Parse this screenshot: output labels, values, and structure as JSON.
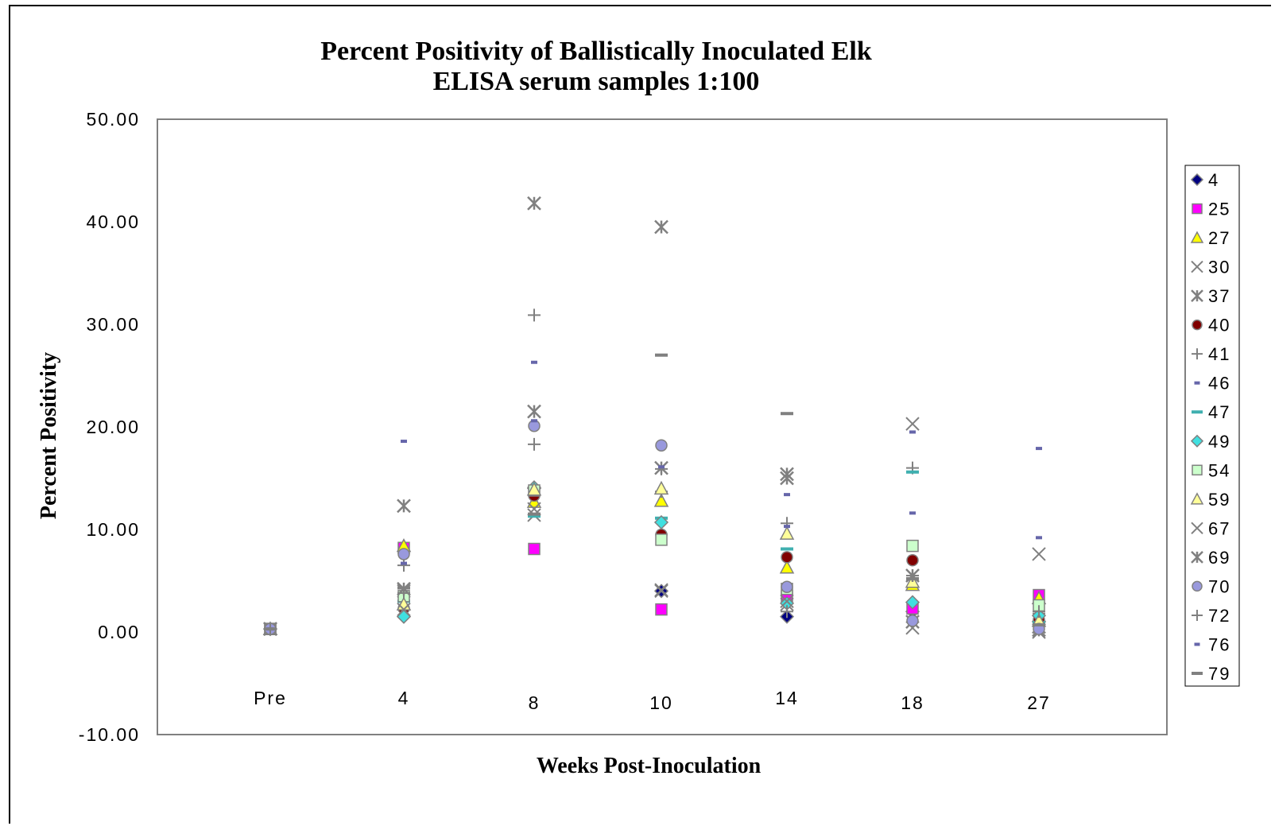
{
  "chart_data": {
    "type": "scatter",
    "title": "Percent Positivity of Ballistically Inoculated Elk",
    "subtitle": "ELISA serum samples 1:100",
    "xlabel": "Weeks Post-Inoculation",
    "ylabel": "Percent Positivity",
    "categories": [
      "Pre",
      "4",
      "8",
      "10",
      "14",
      "18",
      "27"
    ],
    "ylim": [
      -10,
      50
    ],
    "yticks": [
      "50.00",
      "40.00",
      "30.00",
      "20.00",
      "10.00",
      "0.00",
      "-10.00"
    ],
    "grid": false,
    "legend_position": "right",
    "series": [
      {
        "name": "4",
        "marker": "diamond",
        "color": "#000080",
        "values": [
          0.3,
          1.5,
          14.0,
          4.0,
          1.5,
          2.0,
          1.0
        ]
      },
      {
        "name": "25",
        "marker": "square",
        "color": "#ff00ff",
        "values": [
          0.3,
          8.2,
          8.1,
          2.2,
          3.5,
          2.3,
          3.6
        ]
      },
      {
        "name": "27",
        "marker": "triangle",
        "color": "#ffff00",
        "values": [
          0.3,
          8.4,
          12.7,
          12.8,
          6.3,
          4.6,
          3.3
        ]
      },
      {
        "name": "30",
        "marker": "x",
        "color": "#808080",
        "values": [
          0.3,
          4.0,
          11.4,
          4.0,
          2.7,
          0.4,
          0.0
        ]
      },
      {
        "name": "37",
        "marker": "star",
        "color": "#808080",
        "values": [
          0.3,
          12.3,
          41.8,
          39.5,
          15.4,
          1.0,
          0.5
        ]
      },
      {
        "name": "40",
        "marker": "circle",
        "color": "#800000",
        "values": [
          0.3,
          2.3,
          13.3,
          9.5,
          7.3,
          7.0,
          1.2
        ]
      },
      {
        "name": "41",
        "marker": "plus",
        "color": "#808080",
        "values": [
          0.3,
          6.5,
          30.9,
          13.7,
          10.6,
          16.0,
          1.8
        ]
      },
      {
        "name": "46",
        "marker": "dash",
        "color": "#6666aa",
        "values": [
          0.3,
          18.6,
          26.3,
          9.2,
          13.4,
          19.5,
          17.9
        ]
      },
      {
        "name": "47",
        "marker": "hline",
        "color": "#40b0b0",
        "values": [
          0.3,
          3.0,
          11.3,
          11.1,
          8.1,
          15.6,
          0.9
        ]
      },
      {
        "name": "49",
        "marker": "diamond",
        "color": "#40e0e0",
        "values": [
          0.3,
          1.5,
          14.1,
          10.7,
          2.8,
          2.9,
          1.6
        ]
      },
      {
        "name": "54",
        "marker": "square",
        "color": "#ccffcc",
        "values": [
          0.3,
          3.5,
          13.8,
          9.0,
          4.2,
          8.4,
          2.6
        ]
      },
      {
        "name": "59",
        "marker": "triangle",
        "color": "#ffff99",
        "values": [
          0.3,
          2.7,
          13.9,
          14.0,
          9.6,
          4.9,
          1.1
        ]
      },
      {
        "name": "67",
        "marker": "x",
        "color": "#808080",
        "values": [
          0.3,
          2.2,
          12.0,
          4.1,
          3.0,
          20.3,
          7.6
        ]
      },
      {
        "name": "69",
        "marker": "star",
        "color": "#808080",
        "values": [
          0.3,
          4.2,
          21.5,
          16.0,
          15.0,
          5.5,
          0.2
        ]
      },
      {
        "name": "70",
        "marker": "circle",
        "color": "#9999dd",
        "values": [
          0.3,
          7.6,
          20.1,
          18.2,
          4.4,
          1.1,
          0.3
        ]
      },
      {
        "name": "72",
        "marker": "plus",
        "color": "#808080",
        "values": [
          0.3,
          3.8,
          18.3,
          15.9,
          2.0,
          5.5,
          2.0
        ]
      },
      {
        "name": "76",
        "marker": "dash",
        "color": "#6666aa",
        "values": [
          0.3,
          6.7,
          20.6,
          16.1,
          10.3,
          11.6,
          9.2
        ]
      },
      {
        "name": "79",
        "marker": "hline",
        "color": "#808080",
        "values": [
          0.3,
          4.3,
          11.5,
          27.0,
          21.3,
          5.2,
          0.7
        ]
      }
    ]
  }
}
